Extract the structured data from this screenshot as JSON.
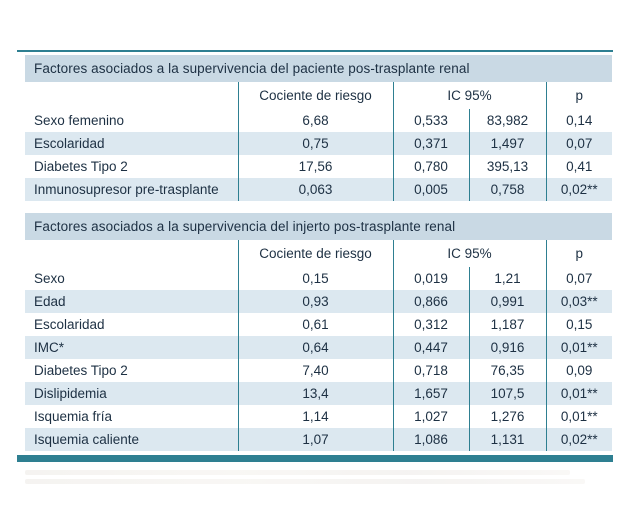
{
  "colors": {
    "accent_teal": "#2e7f91",
    "title_band_blue": "#c9d9e4",
    "row_stripe_blue": "#dce8f0",
    "text_navy": "#1d3043"
  },
  "tables": [
    {
      "title": "Factores asociados a la supervivencia del paciente pos-trasplante renal",
      "columns": [
        "",
        "Cociente de riesgo",
        "IC 95%",
        "p"
      ],
      "rows": [
        {
          "label": "Sexo femenino",
          "cociente": "6,68",
          "ic_low": "0,533",
          "ic_high": "83,982",
          "p": "0,14"
        },
        {
          "label": "Escolaridad",
          "cociente": "0,75",
          "ic_low": "0,371",
          "ic_high": "1,497",
          "p": "0,07"
        },
        {
          "label": "Diabetes Tipo 2",
          "cociente": "17,56",
          "ic_low": "0,780",
          "ic_high": "395,13",
          "p": "0,41"
        },
        {
          "label": "Inmunosupresor pre-trasplante",
          "cociente": "0,063",
          "ic_low": "0,005",
          "ic_high": "0,758",
          "p": "0,02**"
        }
      ]
    },
    {
      "title": "Factores asociados a la supervivencia del injerto pos-trasplante renal",
      "columns": [
        "",
        "Cociente de riesgo",
        "IC 95%",
        "p"
      ],
      "rows": [
        {
          "label": "Sexo",
          "cociente": "0,15",
          "ic_low": "0,019",
          "ic_high": "1,21",
          "p": "0,07"
        },
        {
          "label": "Edad",
          "cociente": "0,93",
          "ic_low": "0,866",
          "ic_high": "0,991",
          "p": "0,03**"
        },
        {
          "label": "Escolaridad",
          "cociente": "0,61",
          "ic_low": "0,312",
          "ic_high": "1,187",
          "p": "0,15"
        },
        {
          "label": "IMC*",
          "cociente": "0,64",
          "ic_low": "0,447",
          "ic_high": "0,916",
          "p": "0,01**"
        },
        {
          "label": "Diabetes Tipo 2",
          "cociente": "7,40",
          "ic_low": "0,718",
          "ic_high": "76,35",
          "p": "0,09"
        },
        {
          "label": "Dislipidemia",
          "cociente": "13,4",
          "ic_low": "1,657",
          "ic_high": "107,5",
          "p": "0,01**"
        },
        {
          "label": "Isquemia fría",
          "cociente": "1,14",
          "ic_low": "1,027",
          "ic_high": "1,276",
          "p": "0,01**"
        },
        {
          "label": "Isquemia caliente",
          "cociente": "1,07",
          "ic_low": "1,086",
          "ic_high": "1,131",
          "p": "0,02**"
        }
      ]
    }
  ]
}
